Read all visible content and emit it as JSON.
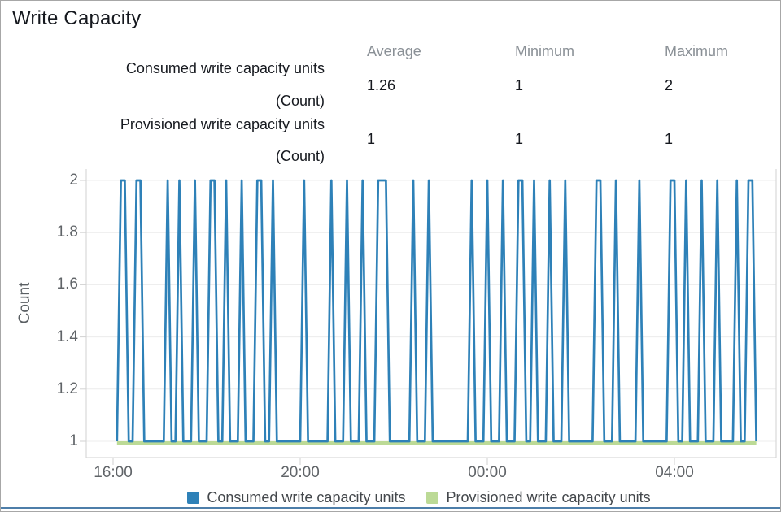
{
  "window": {
    "title": "Write Capacity"
  },
  "stats": {
    "headers": [
      "Average",
      "Minimum",
      "Maximum"
    ],
    "rows": [
      {
        "label": "Consumed write capacity units",
        "unit": "(Count)",
        "values": [
          "1.26",
          "1",
          "2"
        ]
      },
      {
        "label": "Provisioned write capacity units",
        "unit": "(Count)",
        "values": [
          "1",
          "1",
          "1"
        ]
      }
    ]
  },
  "chart_data": {
    "type": "line",
    "title": "Write Capacity",
    "xlabel": "",
    "ylabel": "Count",
    "ylim": [
      1,
      2
    ],
    "yticks": [
      "2",
      "1.8",
      "1.6",
      "1.4",
      "1.2",
      "1"
    ],
    "ytick_values": [
      2,
      1.8,
      1.6,
      1.4,
      1.2,
      1
    ],
    "xticks": [
      "16:00",
      "20:00",
      "00:00",
      "04:00"
    ],
    "x_axis": {
      "start_time": "16:05",
      "end_time": "05:45",
      "sample_interval_minutes": 5,
      "total_minutes": 820
    },
    "grid": true,
    "legend_position": "bottom",
    "series": [
      {
        "name": "Consumed write capacity units",
        "color": "#2E81B8",
        "baseline_value": 1,
        "spike_value": 2,
        "spike_minutes": [
          5,
          10,
          25,
          30,
          65,
          80,
          100,
          120,
          125,
          140,
          160,
          180,
          185,
          200,
          240,
          275,
          295,
          315,
          335,
          340,
          345,
          380,
          400,
          455,
          475,
          495,
          515,
          520,
          535,
          555,
          575,
          615,
          620,
          640,
          670,
          710,
          715,
          730,
          750,
          770,
          795,
          810,
          815
        ],
        "summary": {
          "average": 1.26,
          "minimum": 1,
          "maximum": 2
        }
      },
      {
        "name": "Provisioned write capacity units",
        "color": "#BCDA96",
        "constant_value": 1,
        "summary": {
          "average": 1,
          "minimum": 1,
          "maximum": 1
        }
      }
    ]
  },
  "colors": {
    "grid": "#ececec",
    "axis": "#d2d2d2",
    "bottom_bar": "#4d7ea9"
  }
}
